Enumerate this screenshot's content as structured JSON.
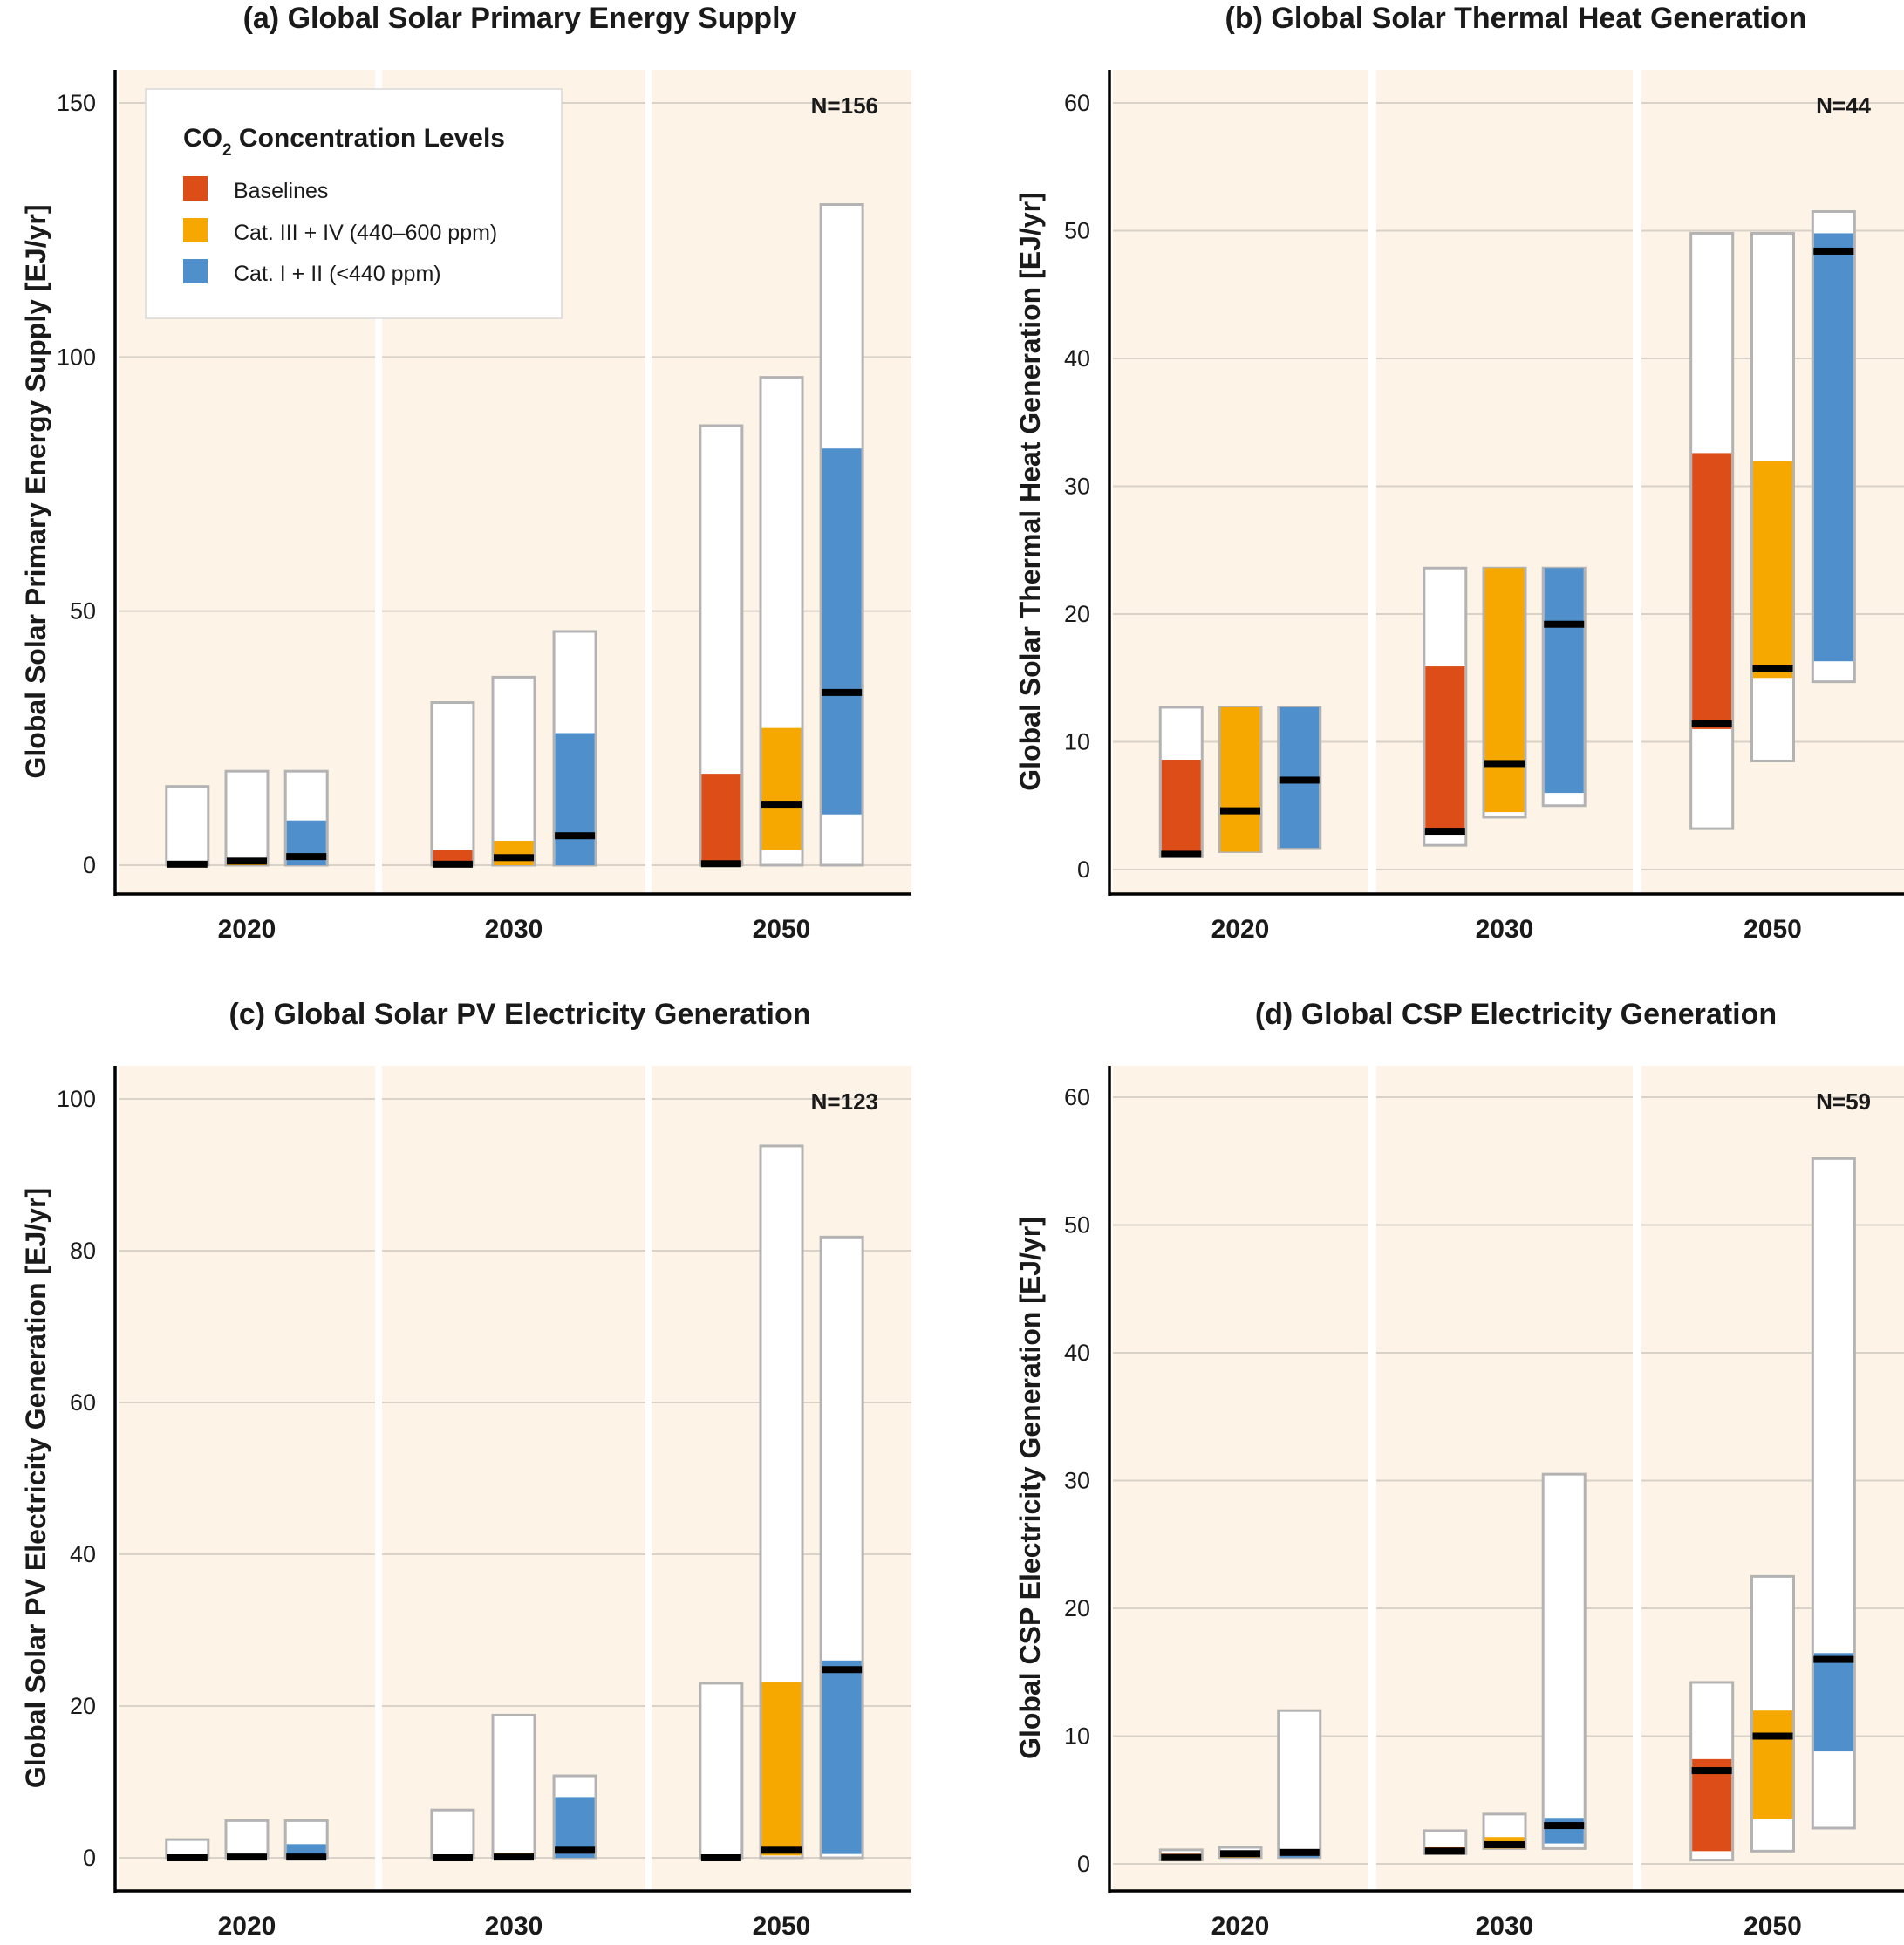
{
  "colors": {
    "baseline": "#dd4d17",
    "cat34": "#f6a800",
    "cat12": "#4f8fcb",
    "panel_bg": "#fdf3e6",
    "box_border": "#b3b3b3",
    "median": "#000000",
    "grid": "#d9d2c8"
  },
  "legend": {
    "title_main": "CO",
    "title_sub": "2",
    "title_rest": " Concentration Levels",
    "items": [
      {
        "label": "Baselines",
        "color_key": "baseline"
      },
      {
        "label": "Cat. III + IV (440–600 ppm)",
        "color_key": "cat34"
      },
      {
        "label": "Cat. I + II (<440 ppm)",
        "color_key": "cat12"
      }
    ]
  },
  "chart_data": [
    {
      "type": "box",
      "title": "(a) Global Solar Primary Energy Supply",
      "ylabel": "Global Solar Primary Energy Supply [EJ/yr]",
      "ylim": [
        0,
        150
      ],
      "yticks": [
        0,
        50,
        100,
        150
      ],
      "n_label": "N=156",
      "groups": [
        "2020",
        "2030",
        "2050"
      ],
      "series": [
        "Baselines",
        "Cat. III + IV (440–600 ppm)",
        "Cat. I + II (<440 ppm)"
      ],
      "boxes": [
        [
          {
            "min": 0,
            "max": 15.5,
            "q1": 0,
            "q3": 0.8,
            "median": 0.2
          },
          {
            "min": 0,
            "max": 18.5,
            "q1": 0,
            "q3": 0.8,
            "median": 0.8
          },
          {
            "min": 0,
            "max": 18.5,
            "q1": 0,
            "q3": 8.8,
            "median": 1.7
          }
        ],
        [
          {
            "min": 0,
            "max": 32,
            "q1": 0,
            "q3": 3,
            "median": 0.2
          },
          {
            "min": 0,
            "max": 37,
            "q1": 0,
            "q3": 4.8,
            "median": 1.5
          },
          {
            "min": 0,
            "max": 46,
            "q1": 0,
            "q3": 26,
            "median": 5.8
          }
        ],
        [
          {
            "min": 0,
            "max": 86.5,
            "q1": 0,
            "q3": 18,
            "median": 0.3
          },
          {
            "min": 0,
            "max": 96,
            "q1": 3,
            "q3": 27,
            "median": 12
          },
          {
            "min": 0,
            "max": 130,
            "q1": 10,
            "q3": 82,
            "median": 34
          }
        ]
      ]
    },
    {
      "type": "box",
      "title": "(b) Global Solar Thermal Heat Generation",
      "ylabel": "Global Solar Thermal Heat Generation [EJ/yr]",
      "ylim": [
        0,
        60
      ],
      "yticks": [
        0,
        10,
        20,
        30,
        40,
        50,
        60
      ],
      "n_label": "N=44",
      "groups": [
        "2020",
        "2030",
        "2050"
      ],
      "series": [
        "Baselines",
        "Cat. III + IV (440–600 ppm)",
        "Cat. I + II (<440 ppm)"
      ],
      "boxes": [
        [
          {
            "min": 1,
            "max": 12.7,
            "q1": 1,
            "q3": 8.6,
            "median": 1.2
          },
          {
            "min": 1.4,
            "max": 12.7,
            "q1": 1.4,
            "q3": 12.7,
            "median": 4.6
          },
          {
            "min": 1.7,
            "max": 12.7,
            "q1": 1.7,
            "q3": 12.7,
            "median": 7
          }
        ],
        [
          {
            "min": 1.9,
            "max": 23.6,
            "q1": 2.8,
            "q3": 15.9,
            "median": 3
          },
          {
            "min": 4.1,
            "max": 23.6,
            "q1": 4.5,
            "q3": 23.6,
            "median": 8.3
          },
          {
            "min": 5,
            "max": 23.6,
            "q1": 6,
            "q3": 23.6,
            "median": 19.2
          }
        ],
        [
          {
            "min": 3.2,
            "max": 49.8,
            "q1": 11,
            "q3": 32.6,
            "median": 11.4
          },
          {
            "min": 8.5,
            "max": 49.8,
            "q1": 15,
            "q3": 32,
            "median": 15.7
          },
          {
            "min": 14.7,
            "max": 51.5,
            "q1": 16.3,
            "q3": 49.8,
            "median": 48.4
          }
        ]
      ]
    },
    {
      "type": "box",
      "title": "(c) Global Solar PV Electricity Generation",
      "ylabel": "Global Solar PV Electricity Generation [EJ/yr]",
      "ylim": [
        0,
        100
      ],
      "yticks": [
        0,
        20,
        40,
        60,
        80,
        100
      ],
      "n_label": "N=123",
      "groups": [
        "2020",
        "2030",
        "2050"
      ],
      "series": [
        "Baselines",
        "Cat. III + IV (440–600 ppm)",
        "Cat. I + II (<440 ppm)"
      ],
      "boxes": [
        [
          {
            "min": 0,
            "max": 2.4,
            "q1": 0,
            "q3": 0.3,
            "median": 0
          },
          {
            "min": 0,
            "max": 4.9,
            "q1": 0,
            "q3": 0.3,
            "median": 0.1
          },
          {
            "min": 0,
            "max": 4.9,
            "q1": 0,
            "q3": 1.8,
            "median": 0.1
          }
        ],
        [
          {
            "min": 0,
            "max": 6.3,
            "q1": 0,
            "q3": 0.3,
            "median": 0
          },
          {
            "min": 0,
            "max": 18.8,
            "q1": 0,
            "q3": 0.6,
            "median": 0.1
          },
          {
            "min": 0,
            "max": 10.8,
            "q1": 0,
            "q3": 8,
            "median": 1
          }
        ],
        [
          {
            "min": 0,
            "max": 23,
            "q1": 0,
            "q3": 0.3,
            "median": 0
          },
          {
            "min": 0,
            "max": 93.8,
            "q1": 0.3,
            "q3": 23.2,
            "median": 1
          },
          {
            "min": 0,
            "max": 81.8,
            "q1": 0.5,
            "q3": 26,
            "median": 24.8
          }
        ]
      ]
    },
    {
      "type": "box",
      "title": "(d) Global CSP Electricity Generation",
      "ylabel": "Global CSP Electricity Generation [EJ/yr]",
      "ylim": [
        0,
        60
      ],
      "yticks": [
        0,
        10,
        20,
        30,
        40,
        50,
        60
      ],
      "n_label": "N=59",
      "groups": [
        "2020",
        "2030",
        "2050"
      ],
      "series": [
        "Baselines",
        "Cat. III + IV (440–600 ppm)",
        "Cat. I + II (<440 ppm)"
      ],
      "boxes": [
        [
          {
            "min": 0.3,
            "max": 1.1,
            "q1": 0.3,
            "q3": 0.8,
            "median": 0.5
          },
          {
            "min": 0.5,
            "max": 1.3,
            "q1": 0.5,
            "q3": 1,
            "median": 0.8
          },
          {
            "min": 0.5,
            "max": 12,
            "q1": 0.5,
            "q3": 1,
            "median": 0.9
          }
        ],
        [
          {
            "min": 0.8,
            "max": 2.6,
            "q1": 0.8,
            "q3": 1.3,
            "median": 1
          },
          {
            "min": 1.2,
            "max": 3.9,
            "q1": 1.2,
            "q3": 2.1,
            "median": 1.5
          },
          {
            "min": 1.2,
            "max": 30.5,
            "q1": 1.6,
            "q3": 3.6,
            "median": 3
          }
        ],
        [
          {
            "min": 0.3,
            "max": 14.2,
            "q1": 1,
            "q3": 8.2,
            "median": 7.3
          },
          {
            "min": 1,
            "max": 22.5,
            "q1": 3.5,
            "q3": 12,
            "median": 10
          },
          {
            "min": 2.8,
            "max": 55.2,
            "q1": 8.8,
            "q3": 16.5,
            "median": 16
          }
        ]
      ]
    }
  ],
  "x_groups": [
    "2020",
    "2030",
    "2050"
  ]
}
